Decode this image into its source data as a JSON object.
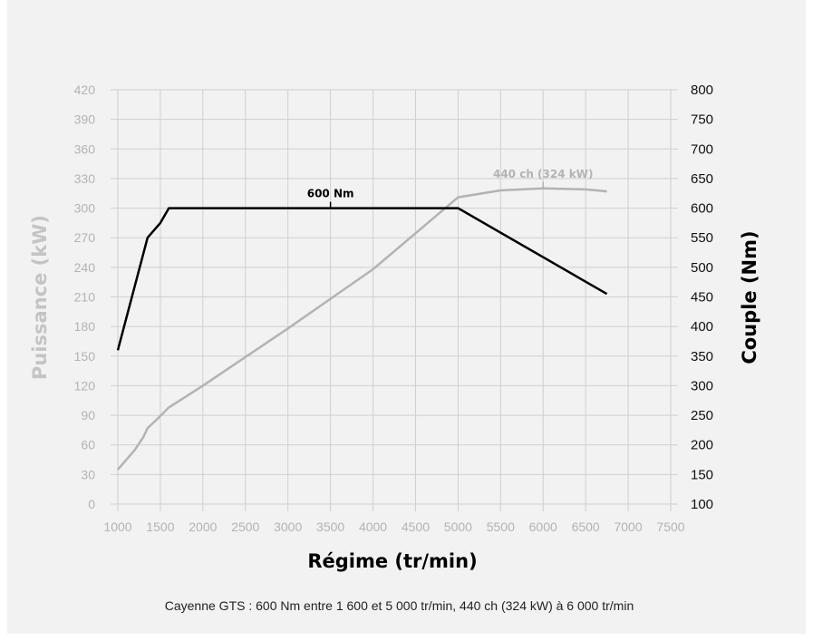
{
  "chart_data": {
    "type": "line",
    "xlabel": "Régime (tr/min)",
    "ylabel_left": "Puissance (kW)",
    "ylabel_right": "Couple (Nm)",
    "xlim": [
      1000,
      7500
    ],
    "xticks": [
      1000,
      1500,
      2000,
      2500,
      3000,
      3500,
      4000,
      4500,
      5000,
      5500,
      6000,
      6500,
      7000,
      7500
    ],
    "ylim_left": [
      0,
      420
    ],
    "yticks_left": [
      0,
      30,
      60,
      90,
      120,
      150,
      180,
      210,
      240,
      270,
      300,
      330,
      360,
      390,
      420
    ],
    "ylim_right": [
      100,
      800
    ],
    "yticks_right": [
      100,
      150,
      200,
      250,
      300,
      350,
      400,
      450,
      500,
      550,
      600,
      650,
      700,
      750,
      800
    ],
    "grid": true,
    "series": [
      {
        "axis": "right",
        "color": "#000000",
        "x": [
          1000,
          1350,
          1500,
          1600,
          5000,
          6750
        ],
        "y": [
          360,
          550,
          575,
          600,
          600,
          455
        ]
      },
      {
        "axis": "left",
        "color": "#b3b3b3",
        "x": [
          1000,
          1200,
          1300,
          1350,
          1450,
          1600,
          2000,
          3000,
          4000,
          5000,
          5500,
          6000,
          6500,
          6750
        ],
        "y": [
          35,
          55,
          68,
          77,
          85,
          98,
          120,
          178,
          238,
          311,
          318,
          320,
          319,
          317
        ]
      }
    ],
    "annotations": [
      {
        "text": "600 Nm",
        "series": 0,
        "x": 3500,
        "y": 600
      },
      {
        "text": "440 ch (324 kW)",
        "series": 1,
        "x": 6000,
        "y": 320
      }
    ]
  },
  "caption": "Cayenne GTS : 600 Nm entre 1 600 et 5 000 tr/min, 440 ch (324 kW) à 6 000 tr/min"
}
